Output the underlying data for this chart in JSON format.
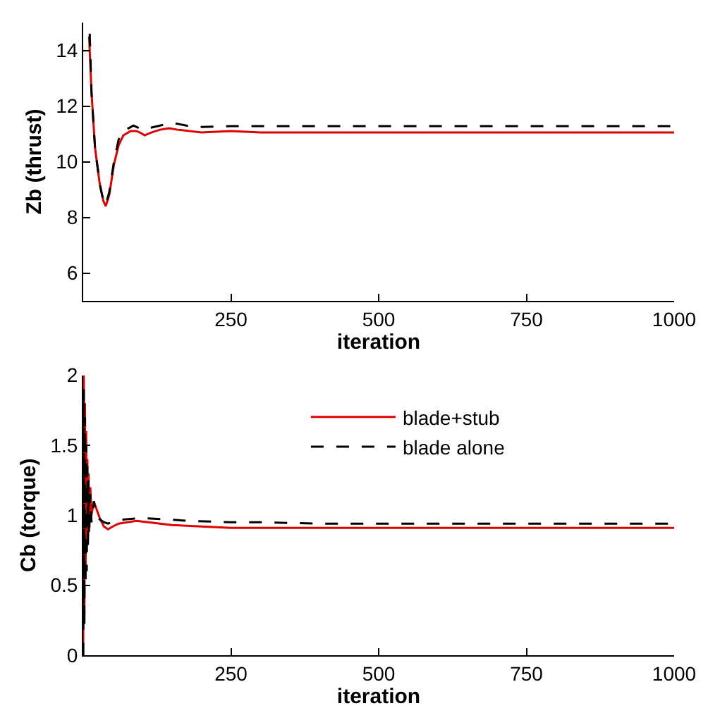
{
  "chart_data": [
    {
      "type": "line",
      "xlabel": "iteration",
      "ylabel": "Zb (thrust)",
      "xlim": [
        0,
        1000
      ],
      "xticks": [
        {
          "value": 0,
          "label": null
        },
        250,
        500,
        750,
        1000
      ],
      "ylim": [
        5,
        15
      ],
      "yticks": [
        6,
        8,
        10,
        12,
        14
      ],
      "legend": false,
      "marker": "none",
      "series": [
        {
          "color": "#e00000",
          "line_style": "solid",
          "x": [
            10,
            14,
            20,
            28,
            34,
            38,
            44,
            52,
            60,
            68,
            80,
            90,
            96,
            104,
            115,
            130,
            145,
            160,
            200,
            250,
            300,
            400,
            500,
            600,
            700,
            800,
            900,
            1000
          ],
          "values": [
            14.5,
            12.5,
            10.5,
            9.2,
            8.6,
            8.4,
            8.8,
            9.9,
            10.6,
            10.95,
            11.1,
            11.1,
            11.05,
            10.95,
            11.05,
            11.15,
            11.2,
            11.15,
            11.05,
            11.1,
            11.05,
            11.05,
            11.05,
            11.05,
            11.05,
            11.05,
            11.05,
            11.05
          ]
        },
        {
          "color": "#000000",
          "line_style": "dashed",
          "x": [
            11,
            14,
            20,
            28,
            34,
            38,
            44,
            52,
            60,
            68,
            85,
            100,
            110,
            130,
            150,
            175,
            200,
            250,
            300,
            400,
            500,
            600,
            700,
            800,
            900,
            1000
          ],
          "values": [
            14.6,
            12.5,
            10.5,
            9.2,
            8.6,
            8.45,
            8.9,
            10.0,
            10.8,
            11.1,
            11.3,
            11.15,
            11.2,
            11.3,
            11.4,
            11.3,
            11.25,
            11.28,
            11.28,
            11.28,
            11.28,
            11.28,
            11.28,
            11.28,
            11.28,
            11.28
          ]
        }
      ]
    },
    {
      "type": "line",
      "xlabel": "iteration",
      "ylabel": "Cb (torque)",
      "xlim": [
        0,
        1000
      ],
      "xticks": [
        {
          "value": 0,
          "label": null
        },
        250,
        500,
        750,
        1000
      ],
      "ylim": [
        0,
        2
      ],
      "yticks": [
        0,
        0.5,
        1,
        1.5,
        2
      ],
      "legend": "top",
      "marker": "none",
      "series": [
        {
          "name": "blade+stub",
          "color": "#e00000",
          "line_style": "solid",
          "x": [
            0,
            1,
            2,
            3,
            4,
            5,
            6,
            7,
            8,
            9,
            10,
            12,
            14,
            18,
            22,
            28,
            35,
            42,
            50,
            60,
            75,
            90,
            110,
            150,
            200,
            250,
            300,
            400,
            500,
            600,
            700,
            800,
            900,
            1000
          ],
          "values": [
            0,
            2,
            0.3,
            1.8,
            0.6,
            1.6,
            0.8,
            1.4,
            0.85,
            1.3,
            0.95,
            1.2,
            1.0,
            1.1,
            1.05,
            0.98,
            0.92,
            0.9,
            0.92,
            0.94,
            0.95,
            0.96,
            0.95,
            0.93,
            0.92,
            0.91,
            0.91,
            0.91,
            0.91,
            0.91,
            0.91,
            0.91,
            0.91,
            0.91
          ]
        },
        {
          "name": "blade alone",
          "color": "#000000",
          "line_style": "dashed",
          "x": [
            0,
            1,
            2,
            3,
            4,
            5,
            6,
            7,
            8,
            9,
            10,
            12,
            14,
            18,
            22,
            28,
            35,
            42,
            55,
            70,
            100,
            140,
            180,
            250,
            300,
            400,
            500,
            600,
            700,
            800,
            900,
            1000
          ],
          "values": [
            0,
            1.9,
            0.2,
            1.7,
            0.5,
            1.5,
            0.6,
            1.35,
            0.75,
            1.25,
            0.85,
            1.15,
            0.95,
            1.1,
            1.0,
            0.97,
            0.95,
            0.94,
            0.96,
            0.97,
            0.98,
            0.97,
            0.96,
            0.95,
            0.95,
            0.94,
            0.94,
            0.94,
            0.94,
            0.94,
            0.94,
            0.94
          ]
        }
      ]
    }
  ]
}
